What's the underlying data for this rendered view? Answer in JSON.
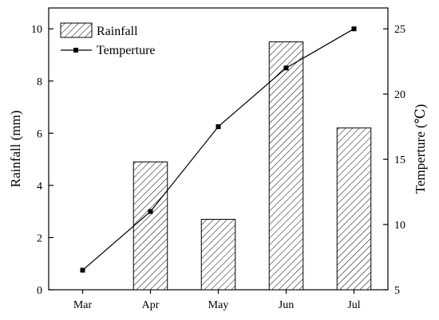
{
  "chart_data": {
    "type": "bar",
    "categories": [
      "Mar",
      "Apr",
      "May",
      "Jun",
      "Jul"
    ],
    "series": [
      {
        "name": "Rainfall",
        "type": "bar",
        "axis": "left",
        "values": [
          0,
          4.9,
          2.7,
          9.5,
          6.2
        ]
      },
      {
        "name": "Temperture",
        "type": "line",
        "axis": "right",
        "values": [
          6.5,
          11.0,
          17.5,
          22.0,
          25.0
        ]
      }
    ],
    "ylabel": "Rainfall (mm)",
    "y2label": "Temperture (℃)",
    "xlabel": "",
    "ylim": [
      0,
      10.8
    ],
    "y2lim": [
      5,
      26.6
    ],
    "yticks": [
      0,
      2,
      4,
      6,
      8,
      10
    ],
    "y2ticks": [
      5,
      10,
      15,
      20,
      25
    ],
    "legend_position": "top-left",
    "grid": false,
    "colors": {
      "line": "#000000",
      "bar_fill": "#ffffff",
      "bar_hatch": "#000000"
    }
  }
}
